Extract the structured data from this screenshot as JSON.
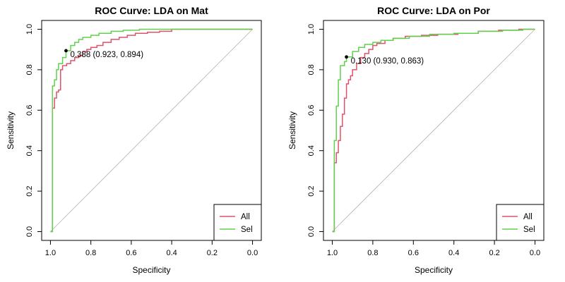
{
  "chart_data": [
    {
      "type": "line",
      "title": "ROC Curve: LDA on Mat",
      "xlabel": "Specificity",
      "ylabel": "Sensitivity",
      "xlim": [
        1.0,
        0.0
      ],
      "ylim": [
        0.0,
        1.0
      ],
      "xticks": [
        "1.0",
        "0.8",
        "0.6",
        "0.4",
        "0.2",
        "0.0"
      ],
      "yticks": [
        "0.0",
        "0.2",
        "0.4",
        "0.6",
        "0.8",
        "1.0"
      ],
      "grid": false,
      "diagonal": true,
      "legend_position": "bottom-right",
      "series": [
        {
          "name": "All",
          "color": "#DF536B",
          "x": [
            1.0,
            0.99,
            0.99,
            0.98,
            0.98,
            0.97,
            0.97,
            0.96,
            0.96,
            0.95,
            0.95,
            0.94,
            0.94,
            0.92,
            0.92,
            0.9,
            0.9,
            0.88,
            0.88,
            0.86,
            0.86,
            0.84,
            0.84,
            0.82,
            0.82,
            0.8,
            0.8,
            0.77,
            0.77,
            0.74,
            0.74,
            0.7,
            0.7,
            0.66,
            0.66,
            0.62,
            0.62,
            0.58,
            0.58,
            0.52,
            0.52,
            0.46,
            0.46,
            0.4,
            0.4,
            0.0
          ],
          "y": [
            0.0,
            0.0,
            0.61,
            0.61,
            0.66,
            0.66,
            0.69,
            0.69,
            0.7,
            0.7,
            0.8,
            0.8,
            0.82,
            0.82,
            0.83,
            0.83,
            0.845,
            0.845,
            0.86,
            0.86,
            0.87,
            0.87,
            0.89,
            0.89,
            0.9,
            0.9,
            0.91,
            0.91,
            0.92,
            0.92,
            0.935,
            0.935,
            0.95,
            0.95,
            0.96,
            0.96,
            0.97,
            0.97,
            0.98,
            0.98,
            0.985,
            0.985,
            0.99,
            0.99,
            1.0,
            1.0
          ]
        },
        {
          "name": "Sel",
          "color": "#61D04F",
          "x": [
            1.0,
            0.99,
            0.99,
            0.98,
            0.98,
            0.97,
            0.97,
            0.96,
            0.96,
            0.94,
            0.94,
            0.923,
            0.923,
            0.9,
            0.9,
            0.88,
            0.88,
            0.86,
            0.86,
            0.84,
            0.84,
            0.8,
            0.8,
            0.76,
            0.76,
            0.7,
            0.7,
            0.64,
            0.64,
            0.56,
            0.56,
            0.0
          ],
          "y": [
            0.0,
            0.0,
            0.72,
            0.72,
            0.75,
            0.75,
            0.8,
            0.8,
            0.83,
            0.83,
            0.86,
            0.86,
            0.894,
            0.894,
            0.92,
            0.92,
            0.935,
            0.935,
            0.95,
            0.95,
            0.96,
            0.96,
            0.97,
            0.97,
            0.98,
            0.98,
            0.99,
            0.99,
            0.995,
            0.995,
            1.0,
            1.0
          ]
        }
      ],
      "annotations": [
        {
          "x": 0.923,
          "y": 0.894,
          "text": "0.388 (0.923, 0.894)"
        }
      ]
    },
    {
      "type": "line",
      "title": "ROC Curve: LDA on Por",
      "xlabel": "Specificity",
      "ylabel": "Sensitivity",
      "xlim": [
        1.0,
        0.0
      ],
      "ylim": [
        0.0,
        1.0
      ],
      "xticks": [
        "1.0",
        "0.8",
        "0.6",
        "0.4",
        "0.2",
        "0.0"
      ],
      "yticks": [
        "0.0",
        "0.2",
        "0.4",
        "0.6",
        "0.8",
        "1.0"
      ],
      "grid": false,
      "diagonal": true,
      "legend_position": "bottom-right",
      "series": [
        {
          "name": "All",
          "color": "#DF536B",
          "x": [
            1.0,
            0.99,
            0.99,
            0.98,
            0.98,
            0.97,
            0.97,
            0.96,
            0.96,
            0.95,
            0.95,
            0.94,
            0.94,
            0.93,
            0.93,
            0.92,
            0.92,
            0.91,
            0.91,
            0.9,
            0.9,
            0.88,
            0.88,
            0.86,
            0.86,
            0.84,
            0.84,
            0.82,
            0.82,
            0.8,
            0.8,
            0.78,
            0.78,
            0.74,
            0.74,
            0.7,
            0.7,
            0.64,
            0.64,
            0.56,
            0.56,
            0.48,
            0.48,
            0.38,
            0.38,
            0.28,
            0.28,
            0.18,
            0.18,
            0.08,
            0.08,
            0.0
          ],
          "y": [
            0.0,
            0.0,
            0.34,
            0.34,
            0.39,
            0.39,
            0.45,
            0.45,
            0.52,
            0.52,
            0.58,
            0.58,
            0.66,
            0.66,
            0.73,
            0.73,
            0.75,
            0.75,
            0.77,
            0.77,
            0.8,
            0.8,
            0.83,
            0.83,
            0.86,
            0.86,
            0.88,
            0.88,
            0.9,
            0.9,
            0.92,
            0.92,
            0.93,
            0.93,
            0.945,
            0.945,
            0.955,
            0.955,
            0.965,
            0.965,
            0.97,
            0.97,
            0.975,
            0.975,
            0.98,
            0.98,
            0.99,
            0.99,
            0.995,
            0.995,
            1.0,
            1.0
          ]
        },
        {
          "name": "Sel",
          "color": "#61D04F",
          "x": [
            1.0,
            0.99,
            0.99,
            0.98,
            0.98,
            0.97,
            0.97,
            0.96,
            0.96,
            0.94,
            0.94,
            0.93,
            0.93,
            0.9,
            0.9,
            0.87,
            0.87,
            0.84,
            0.84,
            0.8,
            0.8,
            0.76,
            0.76,
            0.7,
            0.7,
            0.62,
            0.62,
            0.52,
            0.52,
            0.4,
            0.4,
            0.28,
            0.28,
            0.16,
            0.16,
            0.06,
            0.06,
            0.0
          ],
          "y": [
            0.0,
            0.0,
            0.45,
            0.45,
            0.62,
            0.62,
            0.75,
            0.75,
            0.82,
            0.82,
            0.84,
            0.84,
            0.863,
            0.863,
            0.89,
            0.89,
            0.91,
            0.91,
            0.925,
            0.925,
            0.935,
            0.935,
            0.945,
            0.945,
            0.955,
            0.955,
            0.965,
            0.965,
            0.975,
            0.975,
            0.98,
            0.98,
            0.99,
            0.99,
            0.995,
            0.995,
            1.0,
            1.0
          ]
        }
      ],
      "annotations": [
        {
          "x": 0.93,
          "y": 0.863,
          "text": "0.130 (0.930, 0.863)"
        }
      ]
    }
  ]
}
